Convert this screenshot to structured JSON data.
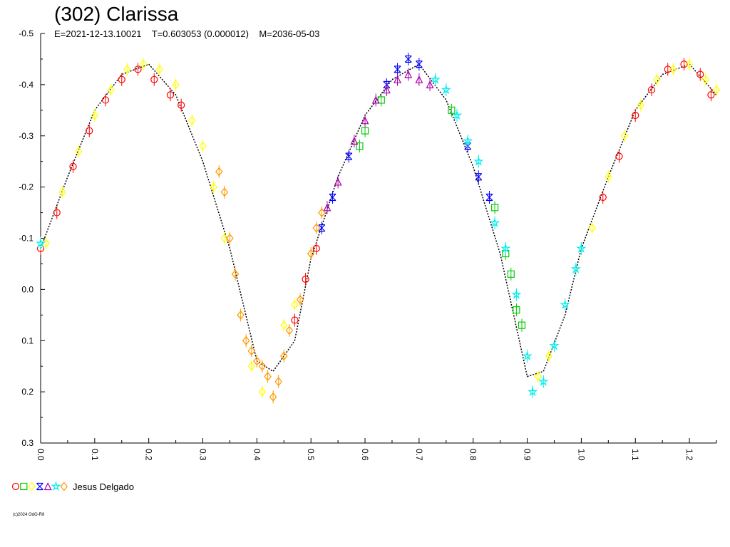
{
  "chart": {
    "title": "(302) Clarissa",
    "subtitle": "E=2021-12-13.10021    T=0.603053 (0.000012)    M=2036-05-03",
    "legend_label": "Jesus Delgado",
    "copyright": "(c)2024 OdO-R8"
  },
  "chart_data": {
    "type": "scatter",
    "title": "(302) Clarissa",
    "xlim": [
      0.0,
      1.25
    ],
    "ylim": [
      -0.5,
      0.3
    ],
    "y_inverted": true,
    "x_ticks": [
      "0.0",
      "0.1",
      "0.2",
      "0.3",
      "0.4",
      "0.5",
      "0.6",
      "0.7",
      "0.8",
      "0.9",
      "1.0",
      "1.1",
      "1.2"
    ],
    "y_ticks": [
      "-0.5",
      "-0.4",
      "-0.3",
      "-0.2",
      "-0.1",
      "0.0",
      "0.1",
      "0.2",
      "0.3"
    ],
    "grid": false,
    "legend_position": "bottom-left",
    "fit_curve": {
      "color": "#000000",
      "points": [
        [
          0.0,
          -0.08
        ],
        [
          0.05,
          -0.22
        ],
        [
          0.1,
          -0.35
        ],
        [
          0.15,
          -0.42
        ],
        [
          0.2,
          -0.44
        ],
        [
          0.25,
          -0.38
        ],
        [
          0.3,
          -0.25
        ],
        [
          0.35,
          -0.08
        ],
        [
          0.4,
          0.14
        ],
        [
          0.43,
          0.16
        ],
        [
          0.47,
          0.1
        ],
        [
          0.5,
          -0.06
        ],
        [
          0.55,
          -0.22
        ],
        [
          0.6,
          -0.34
        ],
        [
          0.65,
          -0.41
        ],
        [
          0.7,
          -0.44
        ],
        [
          0.75,
          -0.37
        ],
        [
          0.8,
          -0.24
        ],
        [
          0.85,
          -0.07
        ],
        [
          0.9,
          0.17
        ],
        [
          0.93,
          0.16
        ],
        [
          0.97,
          0.05
        ],
        [
          1.0,
          -0.08
        ],
        [
          1.05,
          -0.22
        ],
        [
          1.1,
          -0.35
        ],
        [
          1.15,
          -0.42
        ],
        [
          1.2,
          -0.44
        ],
        [
          1.25,
          -0.38
        ]
      ]
    },
    "series": [
      {
        "color": "#ff0000",
        "marker": "circle",
        "points": [
          [
            0.0,
            -0.08
          ],
          [
            0.03,
            -0.15
          ],
          [
            0.06,
            -0.24
          ],
          [
            0.09,
            -0.31
          ],
          [
            0.12,
            -0.37
          ],
          [
            0.15,
            -0.41
          ],
          [
            0.18,
            -0.43
          ],
          [
            0.21,
            -0.41
          ],
          [
            0.24,
            -0.38
          ],
          [
            0.26,
            -0.36
          ],
          [
            0.47,
            0.06
          ],
          [
            0.49,
            -0.02
          ],
          [
            0.51,
            -0.08
          ],
          [
            1.04,
            -0.18
          ],
          [
            1.07,
            -0.26
          ],
          [
            1.1,
            -0.34
          ],
          [
            1.13,
            -0.39
          ],
          [
            1.16,
            -0.43
          ],
          [
            1.19,
            -0.44
          ],
          [
            1.22,
            -0.42
          ],
          [
            1.24,
            -0.38
          ]
        ]
      },
      {
        "color": "#00cc00",
        "marker": "square",
        "points": [
          [
            0.59,
            -0.28
          ],
          [
            0.6,
            -0.31
          ],
          [
            0.63,
            -0.37
          ],
          [
            0.76,
            -0.35
          ],
          [
            0.84,
            -0.16
          ],
          [
            0.86,
            -0.07
          ],
          [
            0.87,
            -0.03
          ],
          [
            0.88,
            0.04
          ],
          [
            0.89,
            0.07
          ]
        ]
      },
      {
        "color": "#ffff00",
        "marker": "diamond",
        "points": [
          [
            0.01,
            -0.09
          ],
          [
            0.04,
            -0.19
          ],
          [
            0.07,
            -0.27
          ],
          [
            0.1,
            -0.34
          ],
          [
            0.13,
            -0.39
          ],
          [
            0.16,
            -0.43
          ],
          [
            0.19,
            -0.44
          ],
          [
            0.22,
            -0.43
          ],
          [
            0.25,
            -0.4
          ],
          [
            0.28,
            -0.33
          ],
          [
            0.3,
            -0.28
          ],
          [
            0.32,
            -0.2
          ],
          [
            0.34,
            -0.1
          ],
          [
            0.39,
            0.15
          ],
          [
            0.41,
            0.2
          ],
          [
            0.45,
            0.07
          ],
          [
            0.47,
            0.03
          ],
          [
            0.92,
            0.17
          ],
          [
            0.94,
            0.13
          ],
          [
            1.02,
            -0.12
          ],
          [
            1.05,
            -0.22
          ],
          [
            1.08,
            -0.3
          ],
          [
            1.11,
            -0.36
          ],
          [
            1.14,
            -0.41
          ],
          [
            1.17,
            -0.43
          ],
          [
            1.2,
            -0.44
          ],
          [
            1.23,
            -0.41
          ],
          [
            1.25,
            -0.39
          ]
        ]
      },
      {
        "color": "#0000ff",
        "marker": "cross",
        "points": [
          [
            0.52,
            -0.12
          ],
          [
            0.54,
            -0.18
          ],
          [
            0.57,
            -0.26
          ],
          [
            0.64,
            -0.4
          ],
          [
            0.66,
            -0.43
          ],
          [
            0.68,
            -0.45
          ],
          [
            0.7,
            -0.44
          ],
          [
            0.79,
            -0.28
          ],
          [
            0.81,
            -0.22
          ],
          [
            0.83,
            -0.18
          ]
        ]
      },
      {
        "color": "#aa00aa",
        "marker": "triangle",
        "points": [
          [
            0.53,
            -0.16
          ],
          [
            0.55,
            -0.21
          ],
          [
            0.58,
            -0.29
          ],
          [
            0.6,
            -0.33
          ],
          [
            0.62,
            -0.37
          ],
          [
            0.64,
            -0.39
          ],
          [
            0.66,
            -0.41
          ],
          [
            0.68,
            -0.42
          ],
          [
            0.7,
            -0.41
          ],
          [
            0.72,
            -0.4
          ]
        ]
      },
      {
        "color": "#00eeee",
        "marker": "star",
        "points": [
          [
            0.0,
            -0.09
          ],
          [
            0.73,
            -0.41
          ],
          [
            0.75,
            -0.39
          ],
          [
            0.77,
            -0.34
          ],
          [
            0.79,
            -0.29
          ],
          [
            0.81,
            -0.25
          ],
          [
            0.84,
            -0.13
          ],
          [
            0.86,
            -0.08
          ],
          [
            0.88,
            0.01
          ],
          [
            0.9,
            0.13
          ],
          [
            0.91,
            0.2
          ],
          [
            0.93,
            0.18
          ],
          [
            0.95,
            0.11
          ],
          [
            0.97,
            0.03
          ],
          [
            0.99,
            -0.04
          ],
          [
            1.0,
            -0.08
          ]
        ]
      },
      {
        "color": "#ff9900",
        "marker": "diamond",
        "points": [
          [
            0.33,
            -0.23
          ],
          [
            0.34,
            -0.19
          ],
          [
            0.35,
            -0.1
          ],
          [
            0.36,
            -0.03
          ],
          [
            0.37,
            0.05
          ],
          [
            0.38,
            0.1
          ],
          [
            0.39,
            0.12
          ],
          [
            0.4,
            0.14
          ],
          [
            0.41,
            0.15
          ],
          [
            0.42,
            0.17
          ],
          [
            0.43,
            0.21
          ],
          [
            0.44,
            0.18
          ],
          [
            0.45,
            0.13
          ],
          [
            0.46,
            0.08
          ],
          [
            0.48,
            0.02
          ],
          [
            0.5,
            -0.07
          ],
          [
            0.51,
            -0.12
          ],
          [
            0.52,
            -0.15
          ]
        ]
      }
    ]
  }
}
